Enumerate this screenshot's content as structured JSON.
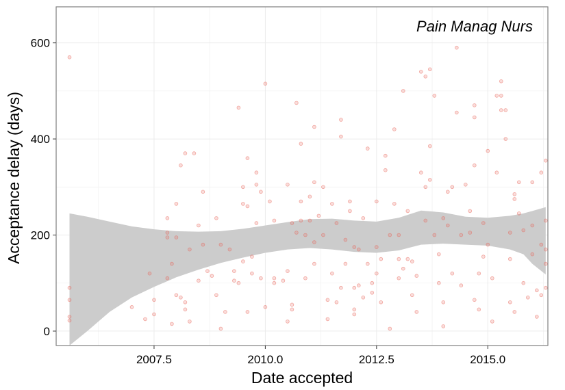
{
  "chart_data": {
    "type": "scatter",
    "xlabel": "Date accepted",
    "ylabel": "Acceptance delay (days)",
    "annotation": "Pain Manag Nurs",
    "xlim": [
      2005.3,
      2016.35
    ],
    "ylim": [
      -30,
      675
    ],
    "x_ticks": [
      2007.5,
      2010.0,
      2012.5,
      2015.0
    ],
    "x_tick_labels": [
      "2007.5",
      "2010.0",
      "2012.5",
      "2015.0"
    ],
    "y_ticks": [
      0,
      200,
      400,
      600
    ],
    "y_tick_labels": [
      "0",
      "200",
      "400",
      "600"
    ],
    "grid": true,
    "point_color": "#e8665a",
    "band_color": "#cccccc",
    "points": [
      [
        2005.6,
        570
      ],
      [
        2005.6,
        90
      ],
      [
        2005.6,
        65
      ],
      [
        2005.6,
        30
      ],
      [
        2005.6,
        22
      ],
      [
        2007.0,
        50
      ],
      [
        2007.3,
        25
      ],
      [
        2007.4,
        120
      ],
      [
        2007.5,
        65
      ],
      [
        2007.5,
        35
      ],
      [
        2007.8,
        110
      ],
      [
        2007.8,
        195
      ],
      [
        2007.8,
        235
      ],
      [
        2007.8,
        205
      ],
      [
        2007.9,
        15
      ],
      [
        2007.9,
        140
      ],
      [
        2008.0,
        195
      ],
      [
        2008.0,
        265
      ],
      [
        2008.0,
        75
      ],
      [
        2008.1,
        345
      ],
      [
        2008.2,
        370
      ],
      [
        2008.2,
        60
      ],
      [
        2008.2,
        45
      ],
      [
        2008.1,
        70
      ],
      [
        2008.3,
        170
      ],
      [
        2008.3,
        20
      ],
      [
        2008.4,
        370
      ],
      [
        2008.5,
        220
      ],
      [
        2008.5,
        105
      ],
      [
        2008.6,
        180
      ],
      [
        2008.6,
        290
      ],
      [
        2008.7,
        125
      ],
      [
        2008.8,
        115
      ],
      [
        2008.9,
        75
      ],
      [
        2008.9,
        235
      ],
      [
        2009.0,
        5
      ],
      [
        2009.0,
        180
      ],
      [
        2009.1,
        40
      ],
      [
        2009.2,
        170
      ],
      [
        2009.3,
        125
      ],
      [
        2009.3,
        105
      ],
      [
        2009.4,
        100
      ],
      [
        2009.4,
        465
      ],
      [
        2009.5,
        265
      ],
      [
        2009.5,
        300
      ],
      [
        2009.5,
        145
      ],
      [
        2009.6,
        260
      ],
      [
        2009.6,
        360
      ],
      [
        2009.6,
        40
      ],
      [
        2009.7,
        120
      ],
      [
        2009.7,
        155
      ],
      [
        2009.8,
        330
      ],
      [
        2009.8,
        225
      ],
      [
        2009.8,
        305
      ],
      [
        2009.9,
        110
      ],
      [
        2009.9,
        290
      ],
      [
        2010.0,
        515
      ],
      [
        2010.0,
        50
      ],
      [
        2010.1,
        270
      ],
      [
        2010.2,
        100
      ],
      [
        2010.2,
        230
      ],
      [
        2010.2,
        110
      ],
      [
        2010.4,
        105
      ],
      [
        2010.5,
        125
      ],
      [
        2010.5,
        305
      ],
      [
        2010.5,
        20
      ],
      [
        2010.6,
        225
      ],
      [
        2010.6,
        45
      ],
      [
        2010.6,
        55
      ],
      [
        2010.7,
        475
      ],
      [
        2010.7,
        205
      ],
      [
        2010.8,
        390
      ],
      [
        2010.8,
        270
      ],
      [
        2010.8,
        230
      ],
      [
        2010.9,
        110
      ],
      [
        2010.9,
        200
      ],
      [
        2011.0,
        230
      ],
      [
        2011.0,
        280
      ],
      [
        2011.1,
        425
      ],
      [
        2011.1,
        310
      ],
      [
        2011.1,
        185
      ],
      [
        2011.1,
        140
      ],
      [
        2011.2,
        240
      ],
      [
        2011.3,
        200
      ],
      [
        2011.3,
        300
      ],
      [
        2011.4,
        65
      ],
      [
        2011.4,
        25
      ],
      [
        2011.5,
        120
      ],
      [
        2011.5,
        265
      ],
      [
        2011.6,
        225
      ],
      [
        2011.6,
        60
      ],
      [
        2011.7,
        90
      ],
      [
        2011.7,
        440
      ],
      [
        2011.7,
        405
      ],
      [
        2011.8,
        190
      ],
      [
        2011.8,
        140
      ],
      [
        2011.9,
        270
      ],
      [
        2011.9,
        250
      ],
      [
        2012.0,
        175
      ],
      [
        2012.0,
        35
      ],
      [
        2012.0,
        90
      ],
      [
        2012.0,
        45
      ],
      [
        2012.1,
        95
      ],
      [
        2012.1,
        170
      ],
      [
        2012.2,
        235
      ],
      [
        2012.2,
        70
      ],
      [
        2012.3,
        380
      ],
      [
        2012.3,
        140
      ],
      [
        2012.4,
        100
      ],
      [
        2012.4,
        80
      ],
      [
        2012.5,
        270
      ],
      [
        2012.5,
        175
      ],
      [
        2012.5,
        120
      ],
      [
        2012.6,
        150
      ],
      [
        2012.6,
        60
      ],
      [
        2012.7,
        335
      ],
      [
        2012.7,
        365
      ],
      [
        2012.8,
        5
      ],
      [
        2012.8,
        200
      ],
      [
        2012.9,
        265
      ],
      [
        2012.9,
        420
      ],
      [
        2013.0,
        110
      ],
      [
        2013.0,
        150
      ],
      [
        2013.0,
        200
      ],
      [
        2013.1,
        500
      ],
      [
        2013.1,
        130
      ],
      [
        2013.2,
        250
      ],
      [
        2013.2,
        150
      ],
      [
        2013.3,
        75
      ],
      [
        2013.3,
        145
      ],
      [
        2013.4,
        40
      ],
      [
        2013.4,
        115
      ],
      [
        2013.5,
        330
      ],
      [
        2013.5,
        540
      ],
      [
        2013.6,
        530
      ],
      [
        2013.6,
        230
      ],
      [
        2013.6,
        300
      ],
      [
        2013.7,
        315
      ],
      [
        2013.7,
        385
      ],
      [
        2013.7,
        545
      ],
      [
        2013.8,
        490
      ],
      [
        2013.8,
        200
      ],
      [
        2013.9,
        100
      ],
      [
        2013.9,
        160
      ],
      [
        2014.0,
        235
      ],
      [
        2014.0,
        60
      ],
      [
        2014.0,
        10
      ],
      [
        2014.1,
        290
      ],
      [
        2014.1,
        220
      ],
      [
        2014.2,
        300
      ],
      [
        2014.2,
        120
      ],
      [
        2014.3,
        590
      ],
      [
        2014.3,
        455
      ],
      [
        2014.4,
        200
      ],
      [
        2014.4,
        95
      ],
      [
        2014.5,
        305
      ],
      [
        2014.6,
        250
      ],
      [
        2014.6,
        205
      ],
      [
        2014.7,
        470
      ],
      [
        2014.7,
        445
      ],
      [
        2014.7,
        345
      ],
      [
        2014.7,
        65
      ],
      [
        2014.8,
        120
      ],
      [
        2014.8,
        45
      ],
      [
        2014.9,
        155
      ],
      [
        2014.9,
        225
      ],
      [
        2015.0,
        375
      ],
      [
        2015.0,
        180
      ],
      [
        2015.1,
        20
      ],
      [
        2015.1,
        110
      ],
      [
        2015.2,
        490
      ],
      [
        2015.2,
        330
      ],
      [
        2015.3,
        520
      ],
      [
        2015.3,
        490
      ],
      [
        2015.3,
        460
      ],
      [
        2015.4,
        400
      ],
      [
        2015.4,
        460
      ],
      [
        2015.5,
        205
      ],
      [
        2015.5,
        150
      ],
      [
        2015.5,
        60
      ],
      [
        2015.6,
        285
      ],
      [
        2015.6,
        275
      ],
      [
        2015.6,
        40
      ],
      [
        2015.7,
        310
      ],
      [
        2015.7,
        245
      ],
      [
        2015.8,
        210
      ],
      [
        2015.8,
        100
      ],
      [
        2015.9,
        70
      ],
      [
        2016.0,
        310
      ],
      [
        2016.0,
        220
      ],
      [
        2016.0,
        160
      ],
      [
        2016.1,
        85
      ],
      [
        2016.1,
        30
      ],
      [
        2016.2,
        330
      ],
      [
        2016.2,
        180
      ],
      [
        2016.2,
        75
      ],
      [
        2016.3,
        355
      ],
      [
        2016.3,
        170
      ],
      [
        2016.3,
        140
      ],
      [
        2016.3,
        90
      ],
      [
        2016.3,
        230
      ]
    ],
    "smooth_band": {
      "x": [
        2005.6,
        2006.0,
        2006.5,
        2007.0,
        2007.5,
        2008.0,
        2008.5,
        2009.0,
        2009.5,
        2010.0,
        2010.5,
        2011.0,
        2011.5,
        2012.0,
        2012.5,
        2013.0,
        2013.5,
        2014.0,
        2014.5,
        2015.0,
        2015.5,
        2015.8,
        2016.0,
        2016.3
      ],
      "upper": [
        245,
        238,
        228,
        218,
        212,
        208,
        207,
        208,
        213,
        220,
        227,
        233,
        234,
        230,
        228,
        236,
        251,
        247,
        238,
        236,
        240,
        245,
        250,
        258
      ],
      "lower": [
        -30,
        0,
        40,
        70,
        92,
        112,
        128,
        142,
        153,
        163,
        170,
        173,
        170,
        165,
        163,
        168,
        180,
        182,
        180,
        178,
        170,
        160,
        140,
        118
      ]
    }
  }
}
